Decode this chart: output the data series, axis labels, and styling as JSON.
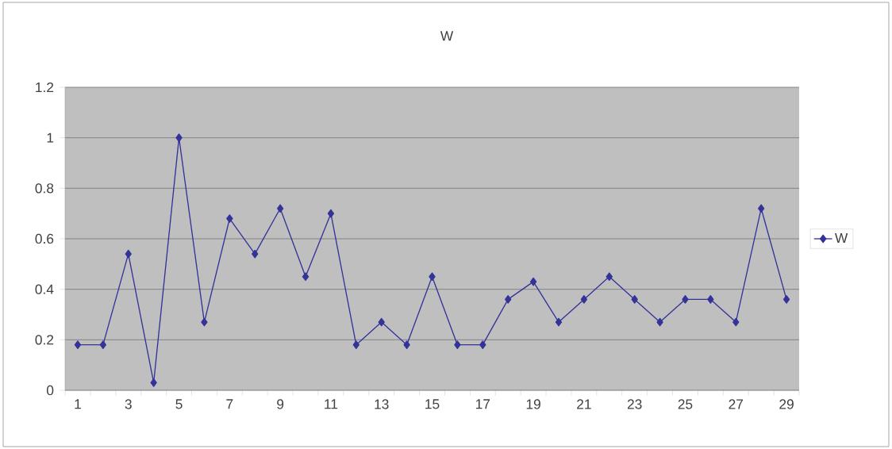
{
  "chart_data": {
    "type": "line",
    "title": "W",
    "categories": [
      "1",
      null,
      "3",
      null,
      "5",
      null,
      "7",
      null,
      "9",
      null,
      "11",
      null,
      "13",
      null,
      "15",
      null,
      "17",
      null,
      "19",
      null,
      "21",
      null,
      "23",
      null,
      "25",
      null,
      "27",
      null,
      "29"
    ],
    "series": [
      {
        "name": "W",
        "color": "#333399",
        "values": [
          0.18,
          0.18,
          0.54,
          0.03,
          1,
          0.27,
          0.68,
          0.54,
          0.72,
          0.45,
          0.7,
          0.18,
          0.27,
          0.18,
          0.45,
          0.18,
          0.18,
          0.36,
          0.43,
          0.27,
          0.36,
          0.45,
          0.36,
          0.27,
          0.36,
          0.36,
          0.27,
          0.72,
          0.36
        ]
      }
    ],
    "ylim": [
      0,
      1.2
    ],
    "yticks": [
      0,
      0.2,
      0.4,
      0.6,
      0.8,
      1,
      1.2
    ],
    "grid": "y",
    "legend": "right",
    "marker": "diamond",
    "line_style": "solid"
  }
}
